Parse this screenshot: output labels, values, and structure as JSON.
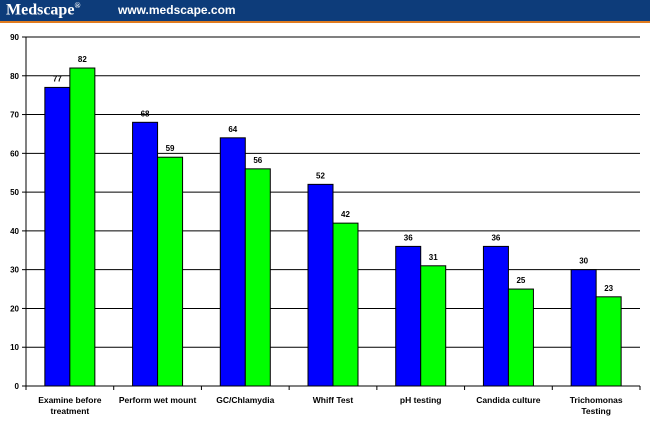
{
  "header": {
    "logo_text": "Medscape",
    "logo_mark": "®",
    "url": "www.medscape.com"
  },
  "colors": {
    "header_bg": "#0d3c7a",
    "header_rule": "#e07b1f",
    "series_1": "#0000ff",
    "series_2": "#00ff00"
  },
  "chart_data": {
    "type": "bar",
    "categories": [
      [
        "Examine before",
        "treatment"
      ],
      [
        "Perform wet mount"
      ],
      [
        "GC/Chlamydia"
      ],
      [
        "Whiff Test"
      ],
      [
        "pH testing"
      ],
      [
        "Candida culture"
      ],
      [
        "Trichomonas",
        "Testing"
      ]
    ],
    "series": [
      {
        "values": [
          77,
          68,
          64,
          52,
          36,
          36,
          30
        ],
        "color": "#0000ff"
      },
      {
        "values": [
          82,
          59,
          56,
          42,
          31,
          25,
          23
        ],
        "color": "#00ff00"
      }
    ],
    "ylim": [
      0,
      90
    ],
    "yticks": [
      0,
      10,
      20,
      30,
      40,
      50,
      60,
      70,
      80,
      90
    ],
    "grid": true,
    "legend": "none"
  }
}
